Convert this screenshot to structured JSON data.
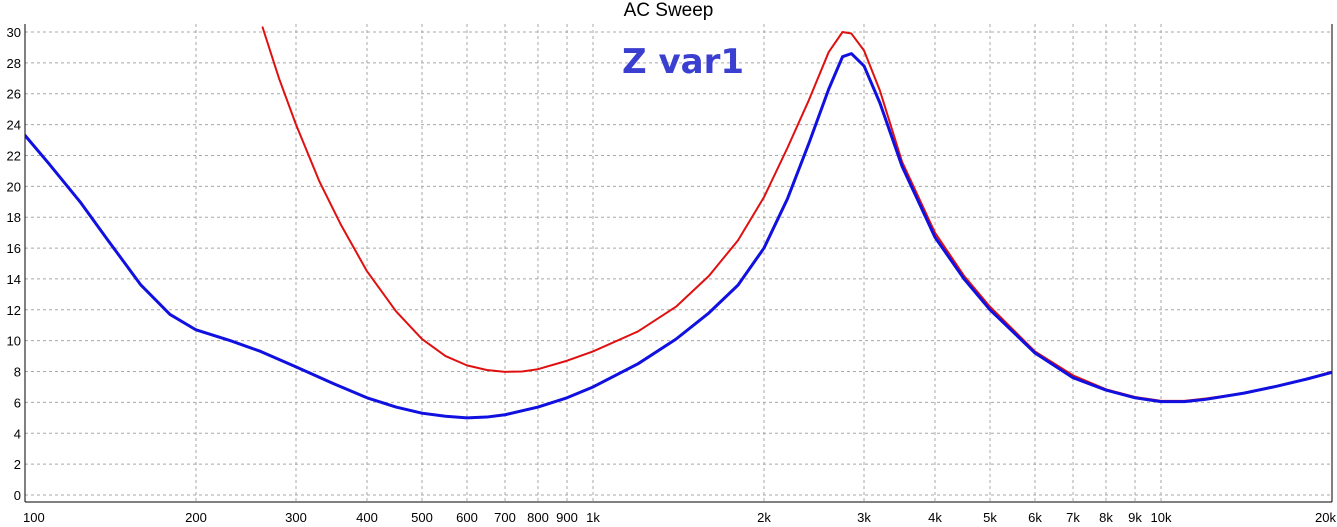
{
  "chart_data": {
    "type": "line",
    "title": "AC Sweep",
    "annotation": "Z var1",
    "xscale": "log",
    "xlim": [
      100,
      20000
    ],
    "ylim": [
      0,
      30
    ],
    "grid": true,
    "x_ticks": [
      {
        "value": 100,
        "label": "100"
      },
      {
        "value": 200,
        "label": "200"
      },
      {
        "value": 300,
        "label": "300"
      },
      {
        "value": 400,
        "label": "400"
      },
      {
        "value": 500,
        "label": "500"
      },
      {
        "value": 600,
        "label": "600"
      },
      {
        "value": 700,
        "label": "700"
      },
      {
        "value": 800,
        "label": "800"
      },
      {
        "value": 900,
        "label": "900"
      },
      {
        "value": 1000,
        "label": "1k"
      },
      {
        "value": 2000,
        "label": "2k"
      },
      {
        "value": 3000,
        "label": "3k"
      },
      {
        "value": 4000,
        "label": "4k"
      },
      {
        "value": 5000,
        "label": "5k"
      },
      {
        "value": 6000,
        "label": "6k"
      },
      {
        "value": 7000,
        "label": "7k"
      },
      {
        "value": 8000,
        "label": "8k"
      },
      {
        "value": 9000,
        "label": "9k"
      },
      {
        "value": 10000,
        "label": "10k"
      },
      {
        "value": 20000,
        "label": "20k"
      }
    ],
    "y_ticks": [
      0,
      2,
      4,
      6,
      8,
      10,
      12,
      14,
      16,
      18,
      20,
      22,
      24,
      26,
      28,
      30
    ],
    "series": [
      {
        "color": "#e01010",
        "points": [
          [
            262,
            30.3
          ],
          [
            280,
            27.0
          ],
          [
            300,
            24.0
          ],
          [
            330,
            20.3
          ],
          [
            360,
            17.5
          ],
          [
            400,
            14.5
          ],
          [
            450,
            11.9
          ],
          [
            500,
            10.1
          ],
          [
            550,
            9.0
          ],
          [
            600,
            8.4
          ],
          [
            650,
            8.1
          ],
          [
            700,
            7.98
          ],
          [
            750,
            8.0
          ],
          [
            800,
            8.15
          ],
          [
            900,
            8.7
          ],
          [
            1000,
            9.3
          ],
          [
            1200,
            10.6
          ],
          [
            1400,
            12.2
          ],
          [
            1600,
            14.2
          ],
          [
            1800,
            16.5
          ],
          [
            2000,
            19.3
          ],
          [
            2200,
            22.5
          ],
          [
            2400,
            25.6
          ],
          [
            2600,
            28.7
          ],
          [
            2750,
            30.0
          ],
          [
            2850,
            29.9
          ],
          [
            3000,
            28.8
          ],
          [
            3200,
            26.2
          ],
          [
            3500,
            21.6
          ],
          [
            4000,
            17.0
          ],
          [
            4500,
            14.2
          ],
          [
            5000,
            12.2
          ],
          [
            6000,
            9.3
          ],
          [
            7000,
            7.75
          ],
          [
            8000,
            6.85
          ],
          [
            9000,
            6.35
          ],
          [
            10000,
            6.1
          ],
          [
            11000,
            6.1
          ],
          [
            12000,
            6.25
          ],
          [
            14000,
            6.6
          ],
          [
            16000,
            7.05
          ],
          [
            18000,
            7.5
          ],
          [
            20000,
            8.0
          ]
        ]
      },
      {
        "color": "#1010e0",
        "points": [
          [
            100,
            23.3
          ],
          [
            110,
            21.5
          ],
          [
            125,
            19.0
          ],
          [
            140,
            16.5
          ],
          [
            160,
            13.6
          ],
          [
            180,
            11.7
          ],
          [
            200,
            10.7
          ],
          [
            230,
            10.0
          ],
          [
            260,
            9.3
          ],
          [
            300,
            8.3
          ],
          [
            350,
            7.2
          ],
          [
            400,
            6.3
          ],
          [
            450,
            5.7
          ],
          [
            500,
            5.3
          ],
          [
            550,
            5.1
          ],
          [
            600,
            5.0
          ],
          [
            650,
            5.05
          ],
          [
            700,
            5.2
          ],
          [
            800,
            5.7
          ],
          [
            900,
            6.3
          ],
          [
            1000,
            7.0
          ],
          [
            1200,
            8.5
          ],
          [
            1400,
            10.1
          ],
          [
            1600,
            11.8
          ],
          [
            1800,
            13.6
          ],
          [
            2000,
            16.0
          ],
          [
            2200,
            19.2
          ],
          [
            2400,
            22.8
          ],
          [
            2600,
            26.3
          ],
          [
            2750,
            28.4
          ],
          [
            2850,
            28.6
          ],
          [
            3000,
            27.8
          ],
          [
            3200,
            25.4
          ],
          [
            3500,
            21.3
          ],
          [
            4000,
            16.7
          ],
          [
            4500,
            14.0
          ],
          [
            5000,
            12.0
          ],
          [
            6000,
            9.2
          ],
          [
            7000,
            7.6
          ],
          [
            8000,
            6.8
          ],
          [
            9000,
            6.3
          ],
          [
            10000,
            6.05
          ],
          [
            11000,
            6.05
          ],
          [
            12000,
            6.2
          ],
          [
            14000,
            6.6
          ],
          [
            16000,
            7.05
          ],
          [
            18000,
            7.5
          ],
          [
            20000,
            7.95
          ]
        ]
      }
    ]
  }
}
